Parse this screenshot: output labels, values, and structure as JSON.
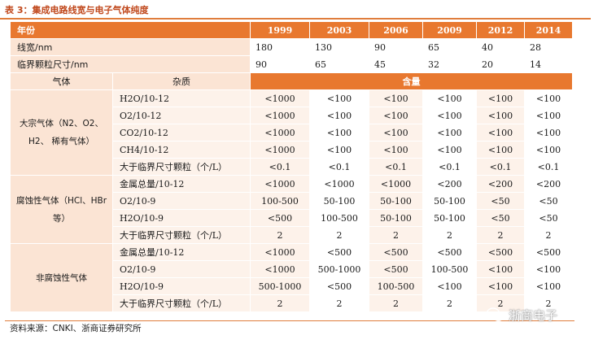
{
  "caption": "表 3：集成电路线宽与电子气体纯度",
  "header": {
    "label": "年份",
    "years": [
      "1999",
      "2003",
      "2006",
      "2009",
      "2012",
      "2014"
    ]
  },
  "linewidth": {
    "label": "线宽/nm",
    "values": [
      "180",
      "130",
      "90",
      "65",
      "40",
      "28"
    ]
  },
  "critical": {
    "label": "临界颗粒尺寸/nm",
    "values": [
      "90",
      "65",
      "45",
      "32",
      "20",
      "14"
    ]
  },
  "subheader": {
    "gas": "气体",
    "impurity": "杂质",
    "content": "含量"
  },
  "groups": [
    {
      "gas": "大宗气体（N2、O2、H2、 稀有气体）",
      "rows": [
        {
          "impurity": "H2O/10-12",
          "values": [
            "<1000",
            "<100",
            "<100",
            "<100",
            "<100",
            "<100"
          ]
        },
        {
          "impurity": "O2/10-12",
          "values": [
            "<1000",
            "<100",
            "<100",
            "<100",
            "<100",
            "<100"
          ]
        },
        {
          "impurity": "CO2/10-12",
          "values": [
            "<1000",
            "<100",
            "<100",
            "<100",
            "<100",
            "<100"
          ]
        },
        {
          "impurity": "CH4/10-12",
          "values": [
            "<1000",
            "<100",
            "<100",
            "<100",
            "<100",
            "<100"
          ]
        },
        {
          "impurity": "大于临界尺寸颗粒（个/L）",
          "values": [
            "<0.1",
            "<0.1",
            "<0.1",
            "<0.1",
            "<0.1",
            "<0.1"
          ]
        }
      ]
    },
    {
      "gas": "腐蚀性气体（HCl、HBr 等）",
      "rows": [
        {
          "impurity": "金属总量/10-12",
          "values": [
            "<1000",
            "<1000",
            "<1000",
            "<200",
            "<200",
            "<200"
          ]
        },
        {
          "impurity": "O2/10-9",
          "values": [
            "100-500",
            "50-100",
            "50-100",
            "50-100",
            "<50",
            "<50"
          ]
        },
        {
          "impurity": "H2O/10-9",
          "values": [
            "<500",
            "100-500",
            "50-100",
            "50-100",
            "<50",
            "<50"
          ]
        },
        {
          "impurity": "大于临界尺寸颗粒（个/L）",
          "values": [
            "2",
            "2",
            "2",
            "2",
            "2",
            "2"
          ]
        }
      ]
    },
    {
      "gas": "非腐蚀性气体",
      "rows": [
        {
          "impurity": "金属总量/10-12",
          "values": [
            "<1000",
            "<500",
            "<500",
            "<500",
            "<500",
            "<500"
          ]
        },
        {
          "impurity": "O2/10-9",
          "values": [
            "<1000",
            "500-1000",
            "<500",
            "100-500",
            "<100",
            "<100"
          ]
        },
        {
          "impurity": "H2O/10-9",
          "values": [
            "500-1000",
            "<500",
            "100-500",
            "<100",
            "<100",
            "<100"
          ]
        },
        {
          "impurity": "大于临界尺寸颗粒（个/L）",
          "values": [
            "2",
            "2",
            "2",
            "2",
            "2",
            "2"
          ]
        }
      ]
    }
  ],
  "source": "资料来源：CNKI、浙商证券研究所",
  "watermark": {
    "text": "浙商电子",
    "icon": "wechat-icon"
  }
}
